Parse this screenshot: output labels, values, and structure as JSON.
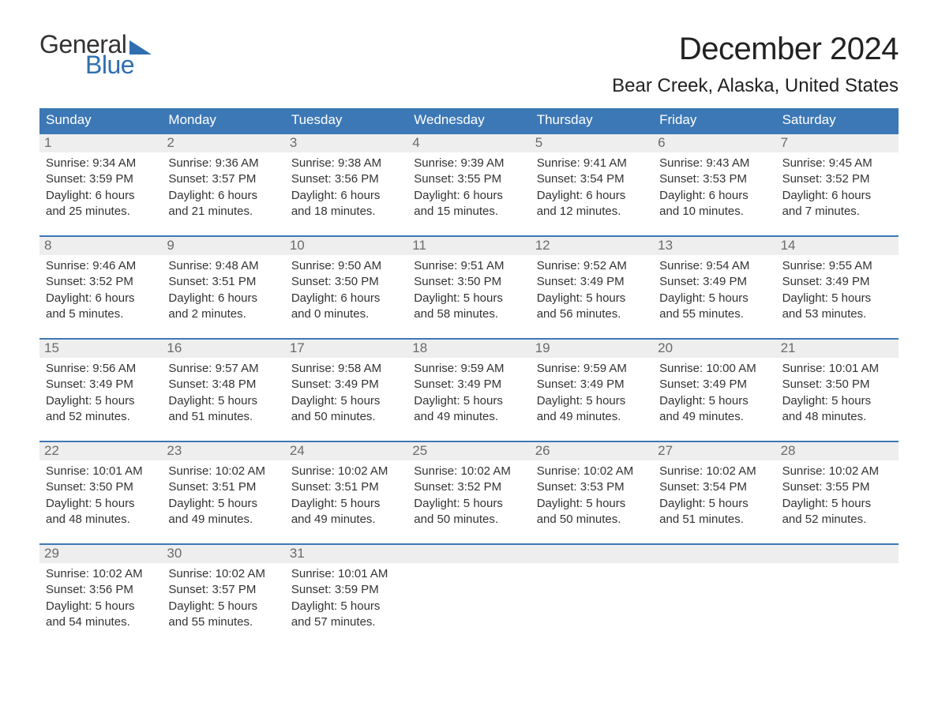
{
  "logo": {
    "text1": "General",
    "text2": "Blue"
  },
  "title": "December 2024",
  "location": "Bear Creek, Alaska, United States",
  "colors": {
    "header_bg": "#3d78b6",
    "header_text": "#ffffff",
    "daynum_bg": "#eeeeee",
    "daynum_text": "#6b6b6b",
    "body_text": "#333333",
    "accent": "#2f6fb0",
    "page_bg": "#ffffff"
  },
  "layout": {
    "columns": 7,
    "weeks": 5,
    "title_fontsize": 40,
    "location_fontsize": 24,
    "dayheader_fontsize": 17,
    "cell_fontsize": 15
  },
  "day_names": [
    "Sunday",
    "Monday",
    "Tuesday",
    "Wednesday",
    "Thursday",
    "Friday",
    "Saturday"
  ],
  "weeks": [
    {
      "days": [
        {
          "num": "1",
          "sunrise": "Sunrise: 9:34 AM",
          "sunset": "Sunset: 3:59 PM",
          "day1": "Daylight: 6 hours",
          "day2": "and 25 minutes."
        },
        {
          "num": "2",
          "sunrise": "Sunrise: 9:36 AM",
          "sunset": "Sunset: 3:57 PM",
          "day1": "Daylight: 6 hours",
          "day2": "and 21 minutes."
        },
        {
          "num": "3",
          "sunrise": "Sunrise: 9:38 AM",
          "sunset": "Sunset: 3:56 PM",
          "day1": "Daylight: 6 hours",
          "day2": "and 18 minutes."
        },
        {
          "num": "4",
          "sunrise": "Sunrise: 9:39 AM",
          "sunset": "Sunset: 3:55 PM",
          "day1": "Daylight: 6 hours",
          "day2": "and 15 minutes."
        },
        {
          "num": "5",
          "sunrise": "Sunrise: 9:41 AM",
          "sunset": "Sunset: 3:54 PM",
          "day1": "Daylight: 6 hours",
          "day2": "and 12 minutes."
        },
        {
          "num": "6",
          "sunrise": "Sunrise: 9:43 AM",
          "sunset": "Sunset: 3:53 PM",
          "day1": "Daylight: 6 hours",
          "day2": "and 10 minutes."
        },
        {
          "num": "7",
          "sunrise": "Sunrise: 9:45 AM",
          "sunset": "Sunset: 3:52 PM",
          "day1": "Daylight: 6 hours",
          "day2": "and 7 minutes."
        }
      ]
    },
    {
      "days": [
        {
          "num": "8",
          "sunrise": "Sunrise: 9:46 AM",
          "sunset": "Sunset: 3:52 PM",
          "day1": "Daylight: 6 hours",
          "day2": "and 5 minutes."
        },
        {
          "num": "9",
          "sunrise": "Sunrise: 9:48 AM",
          "sunset": "Sunset: 3:51 PM",
          "day1": "Daylight: 6 hours",
          "day2": "and 2 minutes."
        },
        {
          "num": "10",
          "sunrise": "Sunrise: 9:50 AM",
          "sunset": "Sunset: 3:50 PM",
          "day1": "Daylight: 6 hours",
          "day2": "and 0 minutes."
        },
        {
          "num": "11",
          "sunrise": "Sunrise: 9:51 AM",
          "sunset": "Sunset: 3:50 PM",
          "day1": "Daylight: 5 hours",
          "day2": "and 58 minutes."
        },
        {
          "num": "12",
          "sunrise": "Sunrise: 9:52 AM",
          "sunset": "Sunset: 3:49 PM",
          "day1": "Daylight: 5 hours",
          "day2": "and 56 minutes."
        },
        {
          "num": "13",
          "sunrise": "Sunrise: 9:54 AM",
          "sunset": "Sunset: 3:49 PM",
          "day1": "Daylight: 5 hours",
          "day2": "and 55 minutes."
        },
        {
          "num": "14",
          "sunrise": "Sunrise: 9:55 AM",
          "sunset": "Sunset: 3:49 PM",
          "day1": "Daylight: 5 hours",
          "day2": "and 53 minutes."
        }
      ]
    },
    {
      "days": [
        {
          "num": "15",
          "sunrise": "Sunrise: 9:56 AM",
          "sunset": "Sunset: 3:49 PM",
          "day1": "Daylight: 5 hours",
          "day2": "and 52 minutes."
        },
        {
          "num": "16",
          "sunrise": "Sunrise: 9:57 AM",
          "sunset": "Sunset: 3:48 PM",
          "day1": "Daylight: 5 hours",
          "day2": "and 51 minutes."
        },
        {
          "num": "17",
          "sunrise": "Sunrise: 9:58 AM",
          "sunset": "Sunset: 3:49 PM",
          "day1": "Daylight: 5 hours",
          "day2": "and 50 minutes."
        },
        {
          "num": "18",
          "sunrise": "Sunrise: 9:59 AM",
          "sunset": "Sunset: 3:49 PM",
          "day1": "Daylight: 5 hours",
          "day2": "and 49 minutes."
        },
        {
          "num": "19",
          "sunrise": "Sunrise: 9:59 AM",
          "sunset": "Sunset: 3:49 PM",
          "day1": "Daylight: 5 hours",
          "day2": "and 49 minutes."
        },
        {
          "num": "20",
          "sunrise": "Sunrise: 10:00 AM",
          "sunset": "Sunset: 3:49 PM",
          "day1": "Daylight: 5 hours",
          "day2": "and 49 minutes."
        },
        {
          "num": "21",
          "sunrise": "Sunrise: 10:01 AM",
          "sunset": "Sunset: 3:50 PM",
          "day1": "Daylight: 5 hours",
          "day2": "and 48 minutes."
        }
      ]
    },
    {
      "days": [
        {
          "num": "22",
          "sunrise": "Sunrise: 10:01 AM",
          "sunset": "Sunset: 3:50 PM",
          "day1": "Daylight: 5 hours",
          "day2": "and 48 minutes."
        },
        {
          "num": "23",
          "sunrise": "Sunrise: 10:02 AM",
          "sunset": "Sunset: 3:51 PM",
          "day1": "Daylight: 5 hours",
          "day2": "and 49 minutes."
        },
        {
          "num": "24",
          "sunrise": "Sunrise: 10:02 AM",
          "sunset": "Sunset: 3:51 PM",
          "day1": "Daylight: 5 hours",
          "day2": "and 49 minutes."
        },
        {
          "num": "25",
          "sunrise": "Sunrise: 10:02 AM",
          "sunset": "Sunset: 3:52 PM",
          "day1": "Daylight: 5 hours",
          "day2": "and 50 minutes."
        },
        {
          "num": "26",
          "sunrise": "Sunrise: 10:02 AM",
          "sunset": "Sunset: 3:53 PM",
          "day1": "Daylight: 5 hours",
          "day2": "and 50 minutes."
        },
        {
          "num": "27",
          "sunrise": "Sunrise: 10:02 AM",
          "sunset": "Sunset: 3:54 PM",
          "day1": "Daylight: 5 hours",
          "day2": "and 51 minutes."
        },
        {
          "num": "28",
          "sunrise": "Sunrise: 10:02 AM",
          "sunset": "Sunset: 3:55 PM",
          "day1": "Daylight: 5 hours",
          "day2": "and 52 minutes."
        }
      ]
    },
    {
      "days": [
        {
          "num": "29",
          "sunrise": "Sunrise: 10:02 AM",
          "sunset": "Sunset: 3:56 PM",
          "day1": "Daylight: 5 hours",
          "day2": "and 54 minutes."
        },
        {
          "num": "30",
          "sunrise": "Sunrise: 10:02 AM",
          "sunset": "Sunset: 3:57 PM",
          "day1": "Daylight: 5 hours",
          "day2": "and 55 minutes."
        },
        {
          "num": "31",
          "sunrise": "Sunrise: 10:01 AM",
          "sunset": "Sunset: 3:59 PM",
          "day1": "Daylight: 5 hours",
          "day2": "and 57 minutes."
        },
        {
          "num": "",
          "empty": true
        },
        {
          "num": "",
          "empty": true
        },
        {
          "num": "",
          "empty": true
        },
        {
          "num": "",
          "empty": true
        }
      ]
    }
  ]
}
